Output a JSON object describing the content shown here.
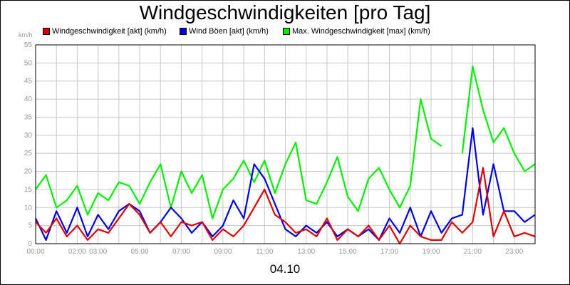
{
  "chart_data": {
    "type": "line",
    "title": "Windgeschwindigkeiten [pro Tag]",
    "ylabel": "km/h",
    "xlabel": "04.10",
    "ylim": [
      0,
      55
    ],
    "yticks": [
      0,
      5,
      10,
      15,
      20,
      25,
      30,
      35,
      40,
      45,
      50,
      55
    ],
    "xlim": [
      0,
      24
    ],
    "xticks": [
      {
        "h": 0,
        "label": "00:00"
      },
      {
        "h": 2,
        "label": "02:00"
      },
      {
        "h": 3,
        "label": "03:00"
      },
      {
        "h": 5,
        "label": "05:00"
      },
      {
        "h": 7,
        "label": "07:00"
      },
      {
        "h": 9,
        "label": "09:00"
      },
      {
        "h": 11,
        "label": "11:00"
      },
      {
        "h": 13,
        "label": "13:00"
      },
      {
        "h": 15,
        "label": "15:00"
      },
      {
        "h": 17,
        "label": "17:00"
      },
      {
        "h": 19,
        "label": "19:00"
      },
      {
        "h": 21,
        "label": "21:00"
      },
      {
        "h": 23,
        "label": "23:00"
      }
    ],
    "grid": true,
    "legend_position": "top",
    "x": [
      0,
      0.5,
      1,
      1.5,
      2,
      2.5,
      3,
      3.5,
      4,
      4.5,
      5,
      5.5,
      6,
      6.5,
      7,
      7.5,
      8,
      8.5,
      9,
      9.5,
      10,
      10.5,
      11,
      11.5,
      12,
      12.5,
      13,
      13.5,
      14,
      14.5,
      15,
      15.5,
      16,
      16.5,
      17,
      17.5,
      18,
      18.5,
      19,
      19.5,
      20,
      20.5,
      21,
      21.5,
      22,
      22.5,
      23,
      23.5,
      24
    ],
    "series": [
      {
        "name": "Windgeschwindigkeit [akt] (km/h)",
        "color": "#dd0000",
        "values": [
          6,
          3,
          7,
          2,
          5,
          1,
          4,
          3,
          7,
          11,
          8,
          3,
          6,
          2,
          6,
          5,
          6,
          1,
          4,
          2,
          5,
          10,
          15,
          8,
          6,
          3,
          4,
          2,
          7,
          1,
          4,
          2,
          5,
          1,
          5,
          0,
          5,
          2,
          1,
          1,
          6,
          3,
          6,
          21,
          2,
          9,
          2,
          3,
          2
        ]
      },
      {
        "name": "Wind Böen [akt] (km/h)",
        "color": "#0000dd",
        "values": [
          7,
          1,
          9,
          3,
          10,
          2,
          8,
          4,
          9,
          11,
          9,
          3,
          6,
          10,
          7,
          3,
          6,
          2,
          5,
          12,
          7,
          22,
          18,
          11,
          4,
          2,
          5,
          3,
          6,
          2,
          4,
          2,
          4,
          1,
          7,
          3,
          10,
          2,
          9,
          3,
          7,
          8,
          32,
          8,
          22,
          9,
          9,
          6,
          8
        ]
      },
      {
        "name": "Max. Windgeschwindigkeit [max] (km/h)",
        "color": "#00ee00",
        "values": [
          15,
          19,
          10,
          12,
          16,
          8,
          14,
          12,
          17,
          16,
          11,
          17,
          22,
          10,
          20,
          14,
          19,
          7,
          15,
          18,
          23,
          17,
          23,
          14,
          22,
          28,
          12,
          11,
          17,
          24,
          13,
          9,
          18,
          21,
          15,
          10,
          16,
          40,
          29,
          27,
          29,
          25,
          49,
          37,
          28,
          32,
          25,
          20,
          22
        ],
        "gaps": [
          [
            19.6,
            20.4
          ]
        ]
      }
    ]
  }
}
